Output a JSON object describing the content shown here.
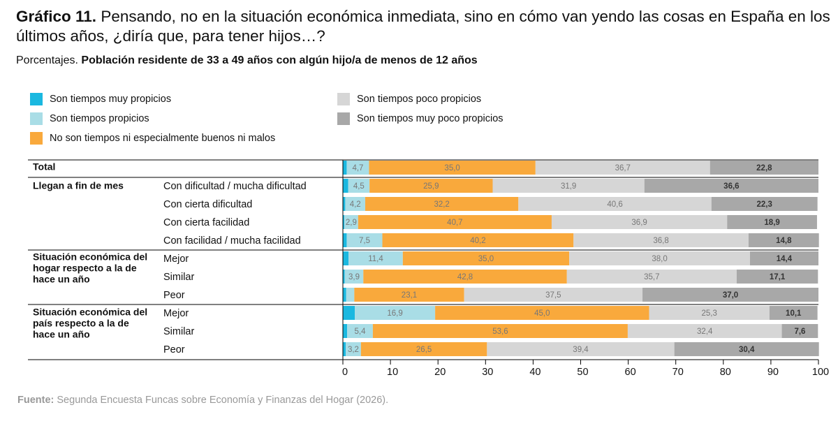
{
  "title": {
    "prefix": "Gráfico 11.",
    "text": "Pensando, no en la situación económica inmediata, sino en cómo van yendo las cosas en España en los últimos años, ¿diría que, para tener hijos…?"
  },
  "subtitle": {
    "prefix": "Porcentajes.",
    "text": "Población residente de 33 a 49 años con algún hijo/a de menos de 12 años"
  },
  "source": {
    "prefix": "Fuente:",
    "text": "Segunda Encuesta Funcas sobre Economía y Finanzas del Hogar (2026)."
  },
  "chart_data": {
    "type": "bar",
    "orientation": "horizontal",
    "stacked": true,
    "xlim": [
      0,
      100
    ],
    "x_ticks": [
      "0",
      "10",
      "20",
      "30",
      "40",
      "50",
      "60",
      "70",
      "80",
      "90",
      "100"
    ],
    "legend_placement": "top",
    "groups": [
      {
        "label": "Total",
        "categories": [
          "Total"
        ]
      },
      {
        "label": "Llegan a fin de mes",
        "categories": [
          "Con dificultad / mucha dificultad",
          "Con cierta dificultad",
          "Con cierta facilidad",
          "Con facilidad / mucha facilidad"
        ]
      },
      {
        "label": "Situación económica del hogar respecto a la de hace un año",
        "categories": [
          "Mejor",
          "Similar",
          "Peor"
        ]
      },
      {
        "label": "Situación económica del país respecto a la de hace un año",
        "categories": [
          "Mejor",
          "Similar",
          "Peor"
        ]
      }
    ],
    "series": [
      {
        "name": "Son tiempos muy propicios",
        "color": "#1AB8E0",
        "values": [
          0.8,
          1.1,
          0.5,
          0.3,
          0.8,
          1.2,
          0.4,
          0.7,
          2.5,
          0.9,
          0.6
        ]
      },
      {
        "name": "Son tiempos propicios",
        "color": "#A9DDE6",
        "values": [
          4.7,
          4.5,
          4.2,
          2.9,
          7.5,
          11.4,
          3.9,
          1.7,
          16.9,
          5.4,
          3.2
        ]
      },
      {
        "name": "No son tiempos ni especialmente buenos ni malos",
        "color": "#F9A93C",
        "values": [
          35.0,
          25.9,
          32.2,
          40.7,
          40.2,
          35.0,
          42.8,
          23.1,
          45.0,
          53.6,
          26.5
        ]
      },
      {
        "name": "Son tiempos poco propicios",
        "color": "#D6D6D6",
        "values": [
          36.7,
          31.9,
          40.6,
          36.9,
          36.8,
          38.0,
          35.7,
          37.5,
          25.3,
          32.4,
          39.4
        ]
      },
      {
        "name": "Son tiempos muy poco propicios",
        "color": "#A8A8A8",
        "values": [
          22.8,
          36.6,
          22.3,
          18.9,
          14.8,
          14.4,
          17.1,
          37.0,
          10.1,
          7.6,
          30.4
        ]
      }
    ],
    "data_labels": [
      [
        "",
        "4,7",
        "35,0",
        "36,7",
        "22,8"
      ],
      [
        "",
        "4,5",
        "25,9",
        "31,9",
        "36,6"
      ],
      [
        "",
        "4,2",
        "32,2",
        "40,6",
        "22,3"
      ],
      [
        "",
        "2,9",
        "40,7",
        "36,9",
        "18,9"
      ],
      [
        "",
        "7,5",
        "40,2",
        "36,8",
        "14,8"
      ],
      [
        "",
        "11,4",
        "35,0",
        "38,0",
        "14,4"
      ],
      [
        "",
        "3,9",
        "42,8",
        "35,7",
        "17,1"
      ],
      [
        "",
        "",
        "23,1",
        "37,5",
        "37,0"
      ],
      [
        "",
        "16,9",
        "45,0",
        "25,3",
        "10,1"
      ],
      [
        "",
        "5,4",
        "53,6",
        "32,4",
        "7,6"
      ],
      [
        "",
        "3,2",
        "26,5",
        "39,4",
        "30,4"
      ]
    ]
  }
}
